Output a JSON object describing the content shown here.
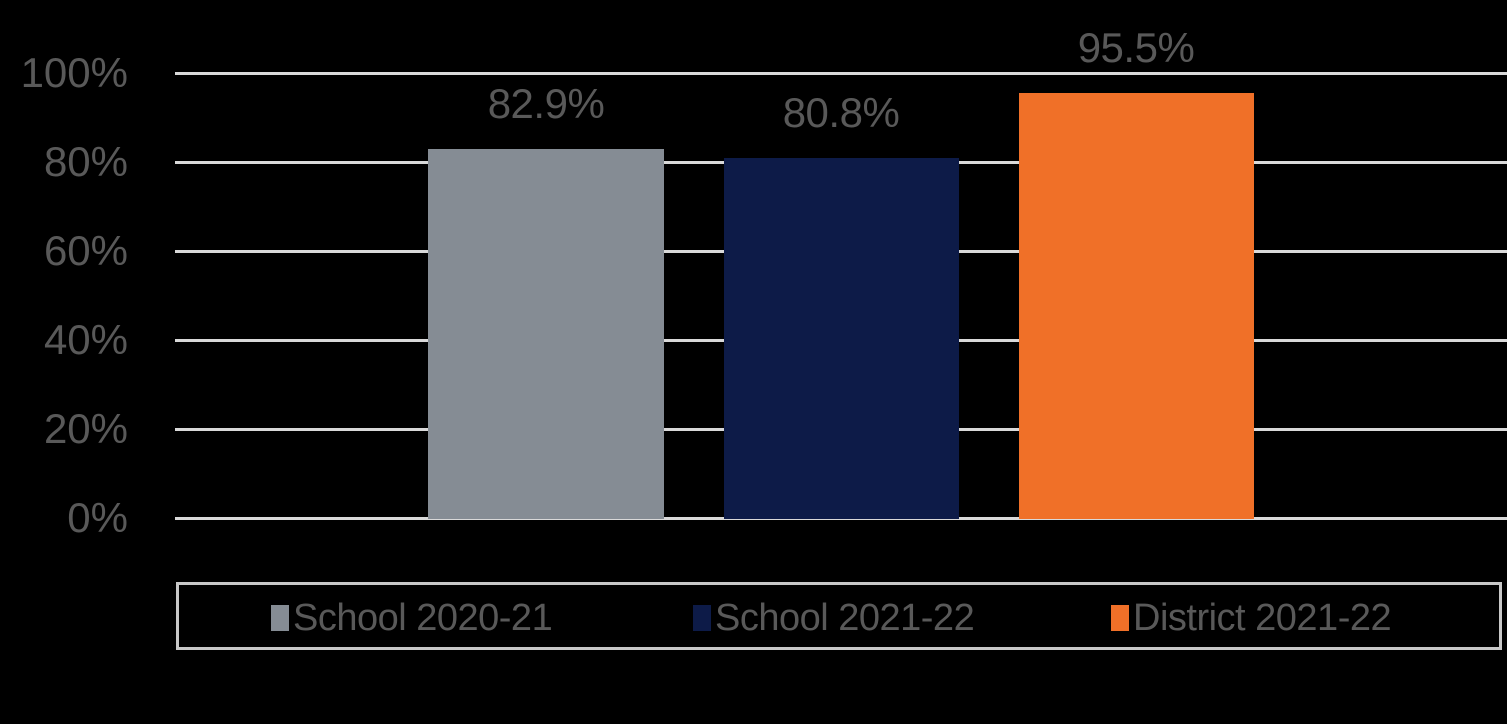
{
  "chart_data": {
    "type": "bar",
    "title": "",
    "xlabel": "",
    "ylabel": "",
    "ylim": [
      0,
      100
    ],
    "y_ticks": [
      "0%",
      "20%",
      "40%",
      "60%",
      "80%",
      "100%"
    ],
    "grid": true,
    "legend_position": "bottom",
    "categories": [
      "School 2020-21",
      "School 2021-22",
      "District 2021-22"
    ],
    "values": [
      82.9,
      80.8,
      95.5
    ],
    "data_labels": [
      "82.9%",
      "80.8%",
      "95.5%"
    ],
    "colors": [
      "#858c94",
      "#0d1b48",
      "#f07028"
    ],
    "series": [
      {
        "name": "School 2020-21",
        "values": [
          82.9
        ],
        "color": "#858c94"
      },
      {
        "name": "School 2021-22",
        "values": [
          80.8
        ],
        "color": "#0d1b48"
      },
      {
        "name": "District 2021-22",
        "values": [
          95.5
        ],
        "color": "#f07028"
      }
    ]
  },
  "axis": {
    "ticks": [
      {
        "label": "100%",
        "value": 100
      },
      {
        "label": "80%",
        "value": 80
      },
      {
        "label": "60%",
        "value": 60
      },
      {
        "label": "40%",
        "value": 40
      },
      {
        "label": "20%",
        "value": 20
      },
      {
        "label": "0%",
        "value": 0
      }
    ]
  },
  "bars": [
    {
      "label": "82.9%",
      "value": 82.9,
      "color": "#858c94"
    },
    {
      "label": "80.8%",
      "value": 80.8,
      "color": "#0d1b48"
    },
    {
      "label": "95.5%",
      "value": 95.5,
      "color": "#f07028"
    }
  ],
  "legend": {
    "items": [
      {
        "label": "School 2020-21",
        "color": "#858c94"
      },
      {
        "label": "School 2021-22",
        "color": "#0d1b48"
      },
      {
        "label": "District 2021-22",
        "color": "#f07028"
      }
    ]
  },
  "colors": {
    "background": "#000000",
    "gridline": "#d9d9d9",
    "text": "#595959",
    "legend_border": "#c8c8c8"
  }
}
